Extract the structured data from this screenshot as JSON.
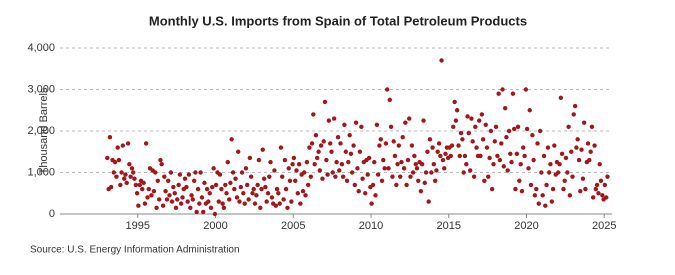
{
  "chart_data": {
    "type": "scatter",
    "title": "Monthly U.S. Imports from Spain of Total Petroleum Products",
    "y_label": "Thousand Barrels",
    "source": "Source: U.S. Energy Information Administration",
    "color": "#a3161c",
    "grid": true,
    "xlim": [
      1990,
      2025.5
    ],
    "xticks": [
      1995,
      2000,
      2005,
      2010,
      2015,
      2020,
      2025
    ],
    "ylim": [
      0,
      4000
    ],
    "yticks": [
      0,
      {
        "value": 1000,
        "label": "1,000"
      },
      {
        "value": 2000,
        "label": "2,000"
      },
      {
        "value": 3000,
        "label": "3,000"
      },
      {
        "value": 4000,
        "label": "4,000"
      }
    ],
    "x": [
      1993.04,
      1993.13,
      1993.21,
      1993.29,
      1993.38,
      1993.46,
      1993.54,
      1993.63,
      1993.71,
      1993.79,
      1993.88,
      1993.96,
      1994.04,
      1994.13,
      1994.21,
      1994.29,
      1994.38,
      1994.46,
      1994.54,
      1994.63,
      1994.71,
      1994.79,
      1994.88,
      1994.96,
      1995.04,
      1995.13,
      1995.21,
      1995.29,
      1995.38,
      1995.46,
      1995.54,
      1995.63,
      1995.71,
      1995.79,
      1995.88,
      1995.96,
      1996.04,
      1996.13,
      1996.21,
      1996.29,
      1996.38,
      1996.46,
      1996.54,
      1996.63,
      1996.71,
      1996.79,
      1996.88,
      1996.96,
      1997.04,
      1997.13,
      1997.21,
      1997.29,
      1997.38,
      1997.46,
      1997.54,
      1997.63,
      1997.71,
      1997.79,
      1997.88,
      1997.96,
      1998.04,
      1998.13,
      1998.21,
      1998.29,
      1998.38,
      1998.46,
      1998.54,
      1998.63,
      1998.71,
      1998.79,
      1998.88,
      1998.96,
      1999.04,
      1999.13,
      1999.21,
      1999.29,
      1999.38,
      1999.46,
      1999.54,
      1999.63,
      1999.71,
      1999.79,
      1999.88,
      1999.96,
      2000.04,
      2000.13,
      2000.21,
      2000.29,
      2000.38,
      2000.46,
      2000.54,
      2000.63,
      2000.71,
      2000.79,
      2000.88,
      2000.96,
      2001.04,
      2001.13,
      2001.21,
      2001.29,
      2001.38,
      2001.46,
      2001.54,
      2001.63,
      2001.71,
      2001.79,
      2001.88,
      2001.96,
      2002.04,
      2002.13,
      2002.21,
      2002.29,
      2002.38,
      2002.46,
      2002.54,
      2002.63,
      2002.71,
      2002.79,
      2002.88,
      2002.96,
      2003.04,
      2003.13,
      2003.21,
      2003.29,
      2003.38,
      2003.46,
      2003.54,
      2003.63,
      2003.71,
      2003.79,
      2003.88,
      2003.96,
      2004.04,
      2004.13,
      2004.21,
      2004.29,
      2004.38,
      2004.46,
      2004.54,
      2004.63,
      2004.71,
      2004.79,
      2004.88,
      2004.96,
      2005.04,
      2005.13,
      2005.21,
      2005.29,
      2005.38,
      2005.46,
      2005.54,
      2005.63,
      2005.71,
      2005.79,
      2005.88,
      2005.96,
      2006.04,
      2006.13,
      2006.21,
      2006.29,
      2006.38,
      2006.46,
      2006.54,
      2006.63,
      2006.71,
      2006.79,
      2006.88,
      2006.96,
      2007.04,
      2007.13,
      2007.21,
      2007.29,
      2007.38,
      2007.46,
      2007.54,
      2007.63,
      2007.71,
      2007.79,
      2007.88,
      2007.96,
      2008.04,
      2008.13,
      2008.21,
      2008.29,
      2008.38,
      2008.46,
      2008.54,
      2008.63,
      2008.71,
      2008.79,
      2008.88,
      2008.96,
      2009.04,
      2009.13,
      2009.21,
      2009.29,
      2009.38,
      2009.46,
      2009.54,
      2009.63,
      2009.71,
      2009.79,
      2009.88,
      2009.96,
      2010.04,
      2010.13,
      2010.21,
      2010.29,
      2010.38,
      2010.46,
      2010.54,
      2010.63,
      2010.71,
      2010.79,
      2010.88,
      2010.96,
      2011.04,
      2011.13,
      2011.21,
      2011.29,
      2011.38,
      2011.46,
      2011.54,
      2011.63,
      2011.71,
      2011.79,
      2011.88,
      2011.96,
      2012.04,
      2012.13,
      2012.21,
      2012.29,
      2012.38,
      2012.46,
      2012.54,
      2012.63,
      2012.71,
      2012.79,
      2012.88,
      2012.96,
      2013.04,
      2013.13,
      2013.21,
      2013.29,
      2013.38,
      2013.46,
      2013.54,
      2013.63,
      2013.71,
      2013.79,
      2013.88,
      2013.96,
      2014.04,
      2014.13,
      2014.21,
      2014.29,
      2014.38,
      2014.46,
      2014.54,
      2014.63,
      2014.71,
      2014.79,
      2014.88,
      2014.96,
      2015.04,
      2015.13,
      2015.21,
      2015.29,
      2015.38,
      2015.46,
      2015.54,
      2015.63,
      2015.71,
      2015.79,
      2015.88,
      2015.96,
      2016.04,
      2016.13,
      2016.21,
      2016.29,
      2016.38,
      2016.46,
      2016.54,
      2016.63,
      2016.71,
      2016.79,
      2016.88,
      2016.96,
      2017.04,
      2017.13,
      2017.21,
      2017.29,
      2017.38,
      2017.46,
      2017.54,
      2017.63,
      2017.71,
      2017.79,
      2017.88,
      2017.96,
      2018.04,
      2018.13,
      2018.21,
      2018.29,
      2018.38,
      2018.46,
      2018.54,
      2018.63,
      2018.71,
      2018.79,
      2018.88,
      2018.96,
      2019.04,
      2019.13,
      2019.21,
      2019.29,
      2019.38,
      2019.46,
      2019.54,
      2019.63,
      2019.71,
      2019.79,
      2019.88,
      2019.96,
      2020.04,
      2020.13,
      2020.21,
      2020.29,
      2020.38,
      2020.46,
      2020.54,
      2020.63,
      2020.71,
      2020.79,
      2020.88,
      2020.96,
      2021.04,
      2021.13,
      2021.21,
      2021.29,
      2021.38,
      2021.46,
      2021.54,
      2021.63,
      2021.71,
      2021.79,
      2021.88,
      2021.96,
      2022.04,
      2022.13,
      2022.21,
      2022.29,
      2022.38,
      2022.46,
      2022.54,
      2022.63,
      2022.71,
      2022.79,
      2022.88,
      2022.96,
      2023.04,
      2023.13,
      2023.21,
      2023.29,
      2023.38,
      2023.46,
      2023.54,
      2023.63,
      2023.71,
      2023.79,
      2023.88,
      2023.96,
      2024.04,
      2024.13,
      2024.21,
      2024.29,
      2024.38,
      2024.46,
      2024.54,
      2024.63,
      2024.71,
      2024.79,
      2024.88,
      2024.96,
      2025.04,
      2025.13,
      2025.21
    ],
    "values": [
      1350,
      600,
      1850,
      650,
      1300,
      1000,
      1250,
      900,
      1600,
      1300,
      700,
      1000,
      1650,
      850,
      950,
      750,
      1700,
      1200,
      900,
      1100,
      1000,
      850,
      700,
      500,
      200,
      700,
      800,
      600,
      750,
      250,
      1700,
      400,
      600,
      1100,
      450,
      1050,
      550,
      1000,
      150,
      800,
      350,
      1300,
      1200,
      200,
      900,
      550,
      350,
      800,
      450,
      1000,
      300,
      650,
      500,
      150,
      350,
      700,
      950,
      250,
      400,
      600,
      850,
      650,
      300,
      950,
      150,
      450,
      350,
      800,
      1000,
      50,
      600,
      250,
      1000,
      400,
      50,
      750,
      250,
      600,
      300,
      500,
      150,
      650,
      1100,
      0,
      700,
      1000,
      300,
      950,
      600,
      250,
      150,
      700,
      500,
      1250,
      350,
      750,
      1800,
      1000,
      600,
      850,
      400,
      1500,
      300,
      650,
      1000,
      500,
      250,
      1100,
      700,
      350,
      1350,
      900,
      500,
      600,
      250,
      450,
      700,
      1300,
      150,
      600,
      1550,
      850,
      650,
      300,
      500,
      900,
      1250,
      400,
      250,
      1050,
      200,
      600,
      500,
      250,
      1600,
      900,
      350,
      1300,
      600,
      150,
      1100,
      800,
      300,
      1200,
      1350,
      800,
      1050,
      500,
      1200,
      250,
      950,
      550,
      1000,
      450,
      1250,
      700,
      1600,
      900,
      1700,
      2400,
      1200,
      1900,
      1350,
      1500,
      1050,
      1650,
      850,
      1750,
      2700,
      1300,
      950,
      2250,
      1700,
      1500,
      1000,
      2300,
      900,
      1250,
      1850,
      1050,
      1700,
      1200,
      900,
      2150,
      1500,
      800,
      1250,
      1900,
      1450,
      1000,
      1650,
      700,
      2200,
      1100,
      550,
      1500,
      2100,
      850,
      1250,
      500,
      1300,
      950,
      1350,
      650,
      250,
      700,
      1250,
      450,
      2150,
      950,
      1650,
      1800,
      800,
      1300,
      1100,
      1700,
      3000,
      1100,
      2750,
      2100,
      900,
      1750,
      1400,
      700,
      1200,
      1650,
      900,
      1250,
      1850,
      1100,
      2200,
      700,
      1300,
      2300,
      900,
      1650,
      1000,
      1400,
      1200,
      1100,
      800,
      1250,
      550,
      1200,
      2250,
      750,
      1000,
      1500,
      300,
      1800,
      1000,
      1600,
      1200,
      800,
      1050,
      1500,
      1700,
      1400,
      3700,
      1300,
      1100,
      1450,
      1600,
      1350,
      1600,
      1400,
      1650,
      2100,
      2700,
      2250,
      2500,
      1650,
      1400,
      1950,
      1800,
      1000,
      1400,
      1200,
      2350,
      1950,
      1050,
      2300,
      1750,
      900,
      2100,
      1600,
      1400,
      2250,
      1400,
      2400,
      1800,
      800,
      2150,
      1600,
      900,
      1350,
      2000,
      600,
      1200,
      1750,
      2100,
      1400,
      2900,
      1300,
      1700,
      3000,
      1150,
      2550,
      1850,
      1050,
      2000,
      1450,
      1250,
      2900,
      2050,
      600,
      1450,
      2100,
      800,
      1200,
      550,
      1600,
      1400,
      3000,
      2050,
      1100,
      2500,
      700,
      1900,
      1300,
      450,
      600,
      1700,
      250,
      2000,
      1000,
      450,
      1400,
      200,
      700,
      1600,
      1000,
      1200,
      300,
      600,
      1650,
      950,
      1250,
      1000,
      1200,
      2800,
      1450,
      600,
      800,
      1350,
      1000,
      2100,
      450,
      1500,
      900,
      2400,
      2600,
      1600,
      1800,
      1300,
      550,
      1550,
      850,
      2200,
      600,
      1250,
      1700,
      1300,
      1500,
      2100,
      400,
      1650,
      600,
      700,
      500,
      1200,
      800,
      450,
      350,
      700,
      400,
      900
    ]
  }
}
